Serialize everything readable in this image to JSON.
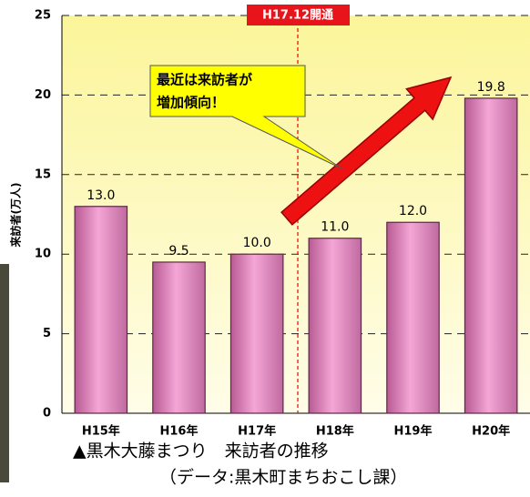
{
  "chart_data": {
    "type": "bar",
    "y_label": "来訪者(万人)",
    "categories": [
      "H15年",
      "H16年",
      "H17年",
      "H18年",
      "H19年",
      "H20年"
    ],
    "values": [
      13.0,
      9.5,
      10.0,
      11.0,
      12.0,
      19.8
    ],
    "value_labels": [
      "13.0",
      "9.5",
      "10.0",
      "11.0",
      "12.0",
      "19.8"
    ],
    "color": "#e88cc4",
    "ylim": [
      0,
      25
    ],
    "yticks": [
      0,
      5,
      10,
      15,
      20,
      25
    ],
    "grid": true,
    "annotations": {
      "opening": "H17.12開通",
      "callout": [
        "最近は来訪者が",
        "増加傾向！"
      ]
    },
    "caption": [
      "▲黒木大藤まつり　来訪者の推移",
      "（データ:黒木町まちおこし課）"
    ]
  }
}
